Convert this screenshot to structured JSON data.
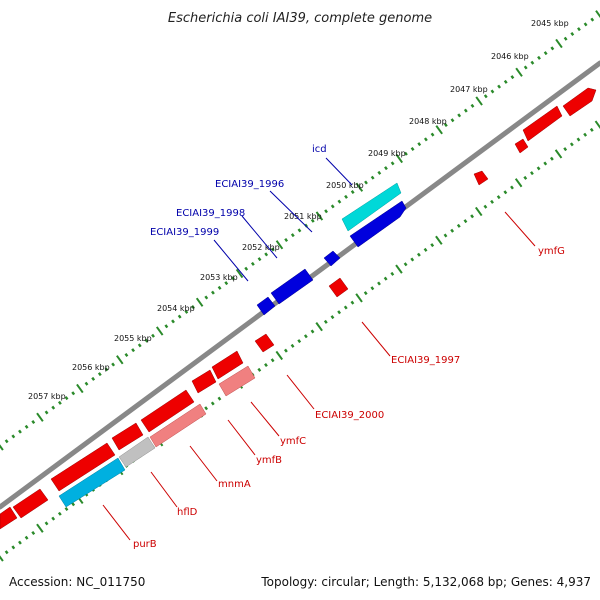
{
  "title": "Escherichia coli IAI39, complete genome",
  "footer": {
    "accession": "Accession: NC_011750",
    "summary": "Topology: circular; Length: 5,132,068 bp; Genes: 4,937"
  },
  "colors": {
    "background": "#ffffff",
    "backbone": "#808080",
    "tick": "#2a8a2a",
    "forward_gene": "#e00000",
    "reverse_gene": "#0000cc",
    "forward_label": "#cc0000",
    "reverse_label": "#0000aa",
    "highlight_blue": "#00b0e0",
    "highlight_cyan": "#00d8d8",
    "pink_gene": "#f08080",
    "grey_gene": "#c0c0c0"
  },
  "ticks": [
    "2045 kbp",
    "2046 kbp",
    "2047 kbp",
    "2048 kbp",
    "2049 kbp",
    "2050 kbp",
    "2051 kbp",
    "2052 kbp",
    "2053 kbp",
    "2054 kbp",
    "2055 kbp",
    "2056 kbp",
    "2057 kbp"
  ],
  "genes_forward_labels": [
    "ymfG",
    "ECIAI39_1997",
    "ECIAI39_2000",
    "ymfC",
    "ymfB",
    "mnmA",
    "hflD",
    "purB"
  ],
  "genes_reverse_labels": [
    "icd",
    "ECIAI39_1996",
    "ECIAI39_1998",
    "ECIAI39_1999"
  ]
}
